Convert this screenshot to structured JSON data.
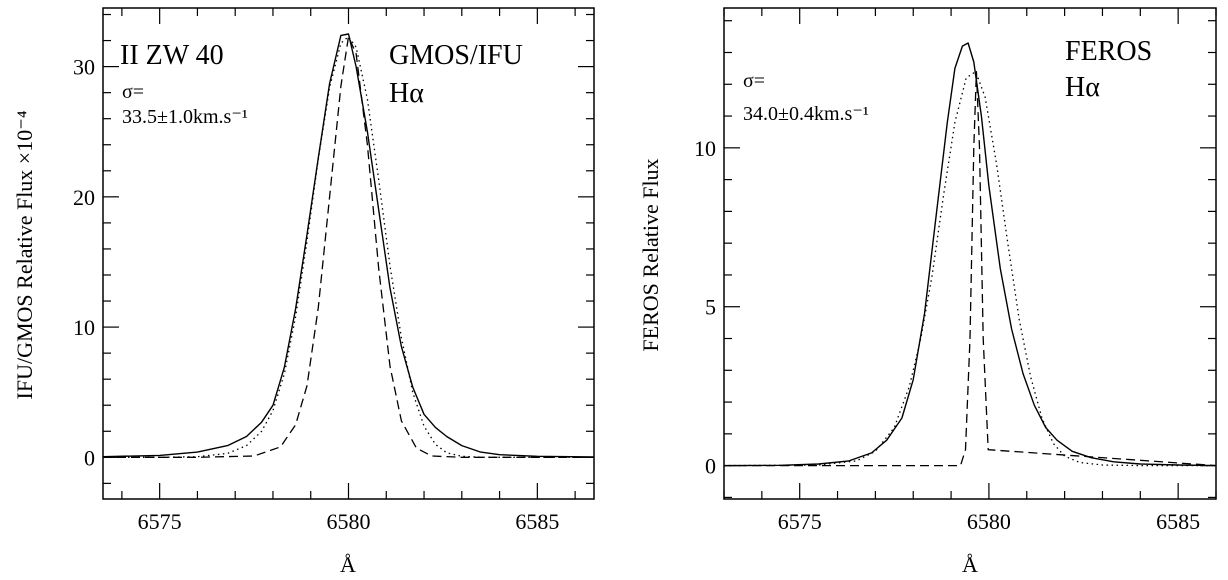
{
  "chart_data": [
    {
      "type": "line",
      "xlabel": "Å",
      "ylabel": "IFU/GMOS Relative Flux ×10⁻⁴",
      "xlim": [
        6573.5,
        6586.5
      ],
      "ylim": [
        -3.2,
        34.5
      ],
      "xticks": [
        6575,
        6580,
        6585
      ],
      "yticks": [
        0,
        10,
        20,
        30
      ],
      "annotations": {
        "object": "II ZW 40",
        "sigma_label": "σ=",
        "sigma_value": "33.5±1.0km.s⁻¹",
        "instrument": "GMOS/IFU",
        "line": "Hα"
      },
      "series": [
        {
          "style": "solid",
          "x": [
            6573.5,
            6575,
            6576,
            6576.8,
            6577.3,
            6577.7,
            6578.0,
            6578.3,
            6578.6,
            6578.9,
            6579.2,
            6579.5,
            6579.8,
            6580.0,
            6580.2,
            6580.5,
            6580.8,
            6581.1,
            6581.4,
            6581.7,
            6582.0,
            6582.3,
            6582.6,
            6583.0,
            6583.5,
            6584,
            6585,
            6586.5
          ],
          "y": [
            0.05,
            0.15,
            0.4,
            0.9,
            1.6,
            2.7,
            4.0,
            6.9,
            11.4,
            17.1,
            23.0,
            28.7,
            32.4,
            32.5,
            30.0,
            25.0,
            19.0,
            13.0,
            8.5,
            5.4,
            3.3,
            2.3,
            1.6,
            0.9,
            0.4,
            0.2,
            0.08,
            0.03
          ]
        },
        {
          "style": "dotted",
          "x": [
            6573.5,
            6575,
            6576,
            6576.8,
            6577.3,
            6577.7,
            6578.0,
            6578.3,
            6578.6,
            6578.9,
            6579.2,
            6579.5,
            6579.8,
            6580.0,
            6580.2,
            6580.5,
            6580.8,
            6581.1,
            6581.4,
            6581.7,
            6582.0,
            6582.3,
            6582.6,
            6583.0,
            6583.5,
            6584,
            6585,
            6586.5
          ],
          "y": [
            0.0,
            0.0,
            0.05,
            0.3,
            0.9,
            2.0,
            3.6,
            6.4,
            10.8,
            16.6,
            22.9,
            28.4,
            31.8,
            32.3,
            31.5,
            27.5,
            21.3,
            14.7,
            9.2,
            5.0,
            2.4,
            1.0,
            0.35,
            0.08,
            0.01,
            0.0,
            0.0,
            0.0
          ]
        },
        {
          "style": "dashed",
          "x": [
            6573.5,
            6576,
            6577.5,
            6578.2,
            6578.6,
            6578.9,
            6579.2,
            6579.5,
            6579.8,
            6580.0,
            6580.2,
            6580.5,
            6580.8,
            6581.1,
            6581.4,
            6581.8,
            6582.2,
            6583,
            6584.5,
            6586.5
          ],
          "y": [
            0.0,
            0.0,
            0.1,
            0.8,
            2.5,
            5.5,
            11.5,
            20.0,
            28.5,
            32.3,
            31.0,
            24.0,
            14.5,
            7.0,
            2.8,
            0.7,
            0.1,
            0.0,
            0.0,
            0.0
          ]
        }
      ]
    },
    {
      "type": "line",
      "xlabel": "Å",
      "ylabel": "FEROS Relative Flux",
      "xlim": [
        6573.0,
        6586.0
      ],
      "ylim": [
        -1.05,
        14.4
      ],
      "xticks": [
        6575,
        6580,
        6585
      ],
      "yticks": [
        0,
        5,
        10
      ],
      "annotations": {
        "sigma_label": "σ=",
        "sigma_value": "34.0±0.4km.s⁻¹",
        "instrument": "FEROS",
        "line": "Hα"
      },
      "series": [
        {
          "style": "solid",
          "x": [
            6573,
            6574.5,
            6575.5,
            6576.3,
            6576.9,
            6577.3,
            6577.7,
            6578.0,
            6578.3,
            6578.6,
            6578.9,
            6579.1,
            6579.3,
            6579.45,
            6579.6,
            6579.8,
            6580.0,
            6580.3,
            6580.6,
            6580.9,
            6581.2,
            6581.5,
            6581.8,
            6582.2,
            6582.7,
            6583.3,
            6584,
            6585,
            6586
          ],
          "y": [
            0.0,
            0.01,
            0.05,
            0.15,
            0.4,
            0.8,
            1.5,
            2.7,
            4.8,
            7.8,
            10.8,
            12.5,
            13.2,
            13.3,
            12.7,
            11.0,
            8.8,
            6.2,
            4.3,
            2.9,
            1.9,
            1.2,
            0.8,
            0.45,
            0.25,
            0.12,
            0.05,
            0.02,
            0.0
          ]
        },
        {
          "style": "dotted",
          "x": [
            6573,
            6575.5,
            6576.5,
            6577.0,
            6577.5,
            6577.9,
            6578.2,
            6578.5,
            6578.8,
            6579.1,
            6579.4,
            6579.65,
            6579.9,
            6580.2,
            6580.5,
            6580.8,
            6581.1,
            6581.4,
            6581.7,
            6582.0,
            6582.4,
            6583,
            6584,
            6586
          ],
          "y": [
            0.0,
            0.02,
            0.15,
            0.45,
            1.2,
            2.5,
            4.0,
            6.0,
            8.5,
            10.8,
            12.2,
            12.4,
            11.6,
            9.5,
            7.0,
            4.6,
            2.8,
            1.5,
            0.7,
            0.3,
            0.1,
            0.02,
            0.0,
            0.0
          ]
        },
        {
          "style": "dashed",
          "x": [
            6573,
            6579.25,
            6579.38,
            6579.5,
            6579.6,
            6579.67,
            6579.75,
            6579.85,
            6579.98,
            6586
          ],
          "y": [
            0.0,
            0.0,
            0.5,
            4.0,
            10.0,
            12.4,
            10.0,
            4.0,
            0.5,
            0.0
          ]
        }
      ]
    }
  ]
}
